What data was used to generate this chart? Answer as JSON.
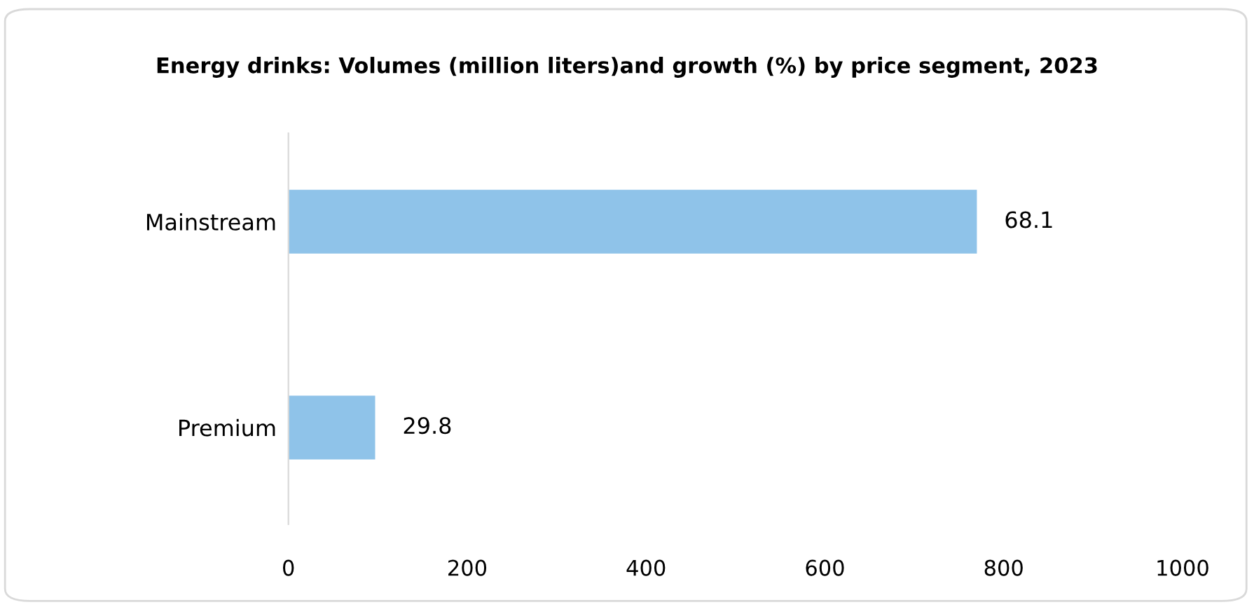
{
  "chart_data": {
    "type": "bar",
    "orientation": "horizontal",
    "title": "Energy drinks: Volumes (million liters)and growth (%) by price segment, 2023",
    "categories": [
      "Mainstream",
      "Premium"
    ],
    "series": [
      {
        "color": "#8fc3e9",
        "values": [
          770,
          97
        ]
      }
    ],
    "annotations": [
      {
        "text": "68.1",
        "x": 770,
        "y": "Mainstream"
      },
      {
        "text": "29.8",
        "x": 97,
        "y": "Premium"
      }
    ],
    "xlim": [
      0,
      1000
    ],
    "xticks": [
      0,
      200,
      400,
      600,
      800,
      1000
    ],
    "grid": false,
    "legend": false
  }
}
